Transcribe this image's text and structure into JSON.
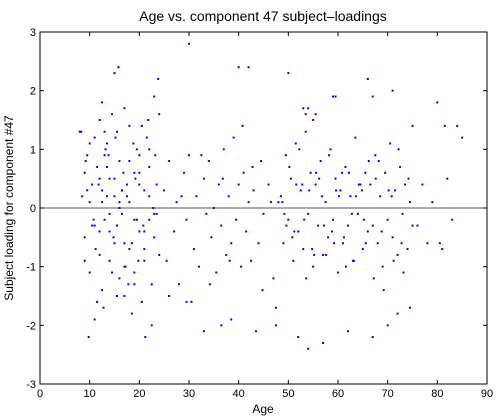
{
  "chart_data": {
    "type": "scatter",
    "title": "Age vs. component 47 subject–loadings",
    "xlabel": "Age",
    "ylabel": "Subject loading for component #47",
    "xlim": [
      0,
      90
    ],
    "ylim": [
      -3,
      3
    ],
    "xticks": [
      "0",
      "10",
      "20",
      "30",
      "40",
      "50",
      "60",
      "70",
      "80",
      "90"
    ],
    "yticks": [
      "-3",
      "-2",
      "-1",
      "0",
      "1",
      "2",
      "3"
    ],
    "grid": false,
    "legend": "none",
    "zero_line": 0,
    "colors": {
      "points": "#0000ff",
      "zero_line": "#555555",
      "axes": "#000000"
    },
    "x": [
      8,
      8.5,
      9,
      9,
      9.5,
      10,
      10,
      10.5,
      11,
      11,
      11.5,
      12,
      12,
      12.5,
      12.5,
      13,
      13,
      13.5,
      14,
      14,
      14.5,
      15,
      15,
      15.5,
      16,
      16,
      16.5,
      17,
      17,
      17.5,
      18,
      18,
      18.5,
      19,
      19,
      19.5,
      20,
      20,
      20.5,
      21,
      21,
      21.5,
      22,
      22,
      22.5,
      23,
      23,
      23.5,
      24,
      24,
      9,
      10,
      11,
      12,
      13,
      14,
      15,
      16,
      17,
      18,
      19,
      20,
      21,
      22,
      23,
      10.5,
      12.5,
      14.5,
      16.5,
      18.5,
      20.5,
      22.5,
      13.5,
      15.5,
      17.5,
      19.5,
      9.5,
      11.5,
      8.3,
      9.2,
      10.8,
      11.8,
      12.8,
      13.8,
      14.8,
      15.8,
      16.8,
      17.8,
      18.8,
      19.8,
      20.8,
      21.8,
      22.8,
      23.8,
      9.8,
      11.2,
      13.2,
      15.2,
      17.2,
      19.2,
      21.2,
      23.2,
      12,
      12.5,
      13.5,
      14,
      15,
      15.5,
      16,
      16.5,
      17,
      18,
      19,
      20,
      21,
      22,
      23.5,
      25,
      25.5,
      26,
      27,
      27.5,
      28,
      29,
      29.5,
      30,
      31,
      31.5,
      32,
      33,
      33.5,
      34,
      34.5,
      35,
      35.5,
      36,
      36.5,
      37,
      37.5,
      38,
      38.5,
      39,
      39.5,
      40,
      40.5,
      41,
      41.5,
      42,
      42.5,
      43,
      44,
      44.5,
      45,
      46,
      47,
      48,
      26,
      28.5,
      30.5,
      32.5,
      34.2,
      36.8,
      38.2,
      40.8,
      42.8,
      44.8,
      46.5,
      47.5,
      48.5,
      49,
      49.5,
      50,
      50.5,
      51,
      51.5,
      52,
      52.5,
      53,
      53.5,
      54,
      54.5,
      55,
      55.5,
      56,
      56.5,
      57,
      57.5,
      58,
      58.5,
      59,
      59.5,
      60,
      60.5,
      61,
      61.5,
      62,
      62.5,
      63,
      63.5,
      64,
      64.5,
      65,
      65.5,
      66,
      49.2,
      50.2,
      51.2,
      52.2,
      53.2,
      54.2,
      55.2,
      56.2,
      57.2,
      58.2,
      59.2,
      60.2,
      61.2,
      62.2,
      63.2,
      64.2,
      65.2,
      66.2,
      48.8,
      50.8,
      52.8,
      54.8,
      56.8,
      58.8,
      60.8,
      62.8,
      64.8,
      49.6,
      51.6,
      53.6,
      55.6,
      57.6,
      59.6,
      61.6,
      63.6,
      65.6,
      67.6,
      66.5,
      67,
      67.5,
      68,
      68.5,
      69,
      69.5,
      70,
      70.5,
      71,
      71.5,
      72,
      72.5,
      73,
      73.5,
      74,
      74.5,
      75,
      67.2,
      68.2,
      69.2,
      70.2,
      71.2,
      72.2,
      73.2,
      74.2,
      68.8,
      70.8,
      72.8,
      76,
      77,
      78,
      79,
      80,
      80.5,
      81,
      81.5,
      82,
      83,
      84,
      85,
      30,
      40,
      42,
      50,
      53,
      53.5,
      54,
      55,
      55.5,
      59,
      59.5,
      66,
      67,
      71,
      75,
      29.5,
      33,
      36.5,
      38.5,
      43.5,
      47.5,
      52,
      54,
      57,
      62,
      67,
      70,
      72,
      74.5
    ],
    "y": [
      1.3,
      0.2,
      -0.5,
      0.6,
      0.9,
      0.1,
      -1.1,
      0.4,
      1.2,
      -0.3,
      0.7,
      -0.8,
      1.5,
      0.3,
      -1.4,
      0.9,
      -0.2,
      1.1,
      0.5,
      -0.9,
      1.6,
      0.2,
      -0.6,
      1.3,
      -1.2,
      0.8,
      -0.1,
      1.7,
      -1.5,
      0.4,
      -0.7,
      1.4,
      -1.8,
      0.6,
      -1.1,
      1.0,
      -0.4,
      0.9,
      -1.6,
      0.3,
      -0.9,
      1.2,
      -0.2,
      0.7,
      -1.3,
      1.9,
      -0.5,
      0.4,
      1.6,
      -0.8,
      -0.9,
      1.1,
      -1.9,
      0.5,
      1.3,
      -0.4,
      2.3,
      0.1,
      -1.0,
      0.8,
      -1.3,
      0.6,
      -0.7,
      1.0,
      -0.1,
      -0.3,
      1.8,
      -1.1,
      0.3,
      -0.6,
      1.4,
      -2.0,
      0.7,
      -1.5,
      0.2,
      -0.2,
      0.3,
      -1.6,
      1.3,
      0.8,
      -0.2,
      0.4,
      -1.7,
      0.9,
      -0.5,
      2.4,
      0.6,
      -1.3,
      1.1,
      -0.9,
      -0.3,
      1.5,
      0.0,
      2.2,
      -2.2,
      -0.7,
      1.0,
      1.2,
      -1.0,
      0.5,
      -2.2,
      0.9,
      -0.4,
      0.1,
      0.2,
      -0.1,
      0.5,
      -0.3,
      0.0,
      0.3,
      -0.6,
      0.1,
      -0.2,
      0.4,
      -0.4,
      0.2,
      -0.1,
      0.3,
      -0.9,
      0.8,
      -0.4,
      0.1,
      -1.3,
      0.6,
      -0.2,
      0.9,
      -0.7,
      0.2,
      -1.0,
      0.5,
      -0.1,
      0.8,
      -0.5,
      0.0,
      -1.1,
      0.4,
      -0.3,
      1.0,
      -0.8,
      0.2,
      -0.6,
      1.2,
      -0.2,
      0.4,
      -1.0,
      0.6,
      -0.4,
      0.1,
      -0.9,
      0.3,
      -0.6,
      0.8,
      -0.1,
      0.4,
      -1.2,
      0.1,
      -1.5,
      0.2,
      -1.6,
      0.9,
      -1.3,
      0.5,
      -0.9,
      1.4,
      0.7,
      -1.4,
      0.1,
      -1.7,
      0.2,
      -0.6,
      0.9,
      -0.2,
      0.5,
      -0.9,
      1.1,
      -0.4,
      0.3,
      -0.7,
      1.3,
      -0.1,
      0.6,
      -1.0,
      0.4,
      -0.3,
      0.8,
      -0.8,
      0.1,
      -0.5,
      1.0,
      -0.2,
      0.5,
      -1.1,
      0.3,
      -0.6,
      0.7,
      -0.3,
      0.2,
      -0.9,
      1.2,
      -0.1,
      0.4,
      -0.7,
      0.6,
      -0.4,
      -0.1,
      0.7,
      -0.4,
      1.0,
      -0.2,
      0.3,
      -0.8,
      0.5,
      -0.3,
      0.9,
      -0.6,
      0.2,
      -0.5,
      0.6,
      -0.9,
      0.4,
      -0.2,
      0.8,
      0.1,
      -0.5,
      0.4,
      -0.7,
      0.2,
      -0.4,
      0.6,
      -0.1,
      0.3,
      -0.3,
      0.4,
      -1.2,
      0.6,
      -0.8,
      0.3,
      -1.0,
      0.2,
      -0.6,
      0.5,
      0.4,
      -0.3,
      0.9,
      -0.6,
      0.2,
      -1.0,
      0.6,
      -0.2,
      1.1,
      -0.5,
      0.3,
      -0.8,
      0.7,
      -0.1,
      0.4,
      -0.7,
      0.1,
      -0.3,
      -1.2,
      0.8,
      -1.4,
      0.3,
      -0.9,
      1.0,
      -1.1,
      0.5,
      -0.4,
      0.2,
      -0.6,
      -0.3,
      0.4,
      -0.6,
      0.1,
      1.8,
      -0.6,
      -0.7,
      1.4,
      0.5,
      -0.2,
      1.4,
      1.2,
      2.8,
      2.4,
      2.4,
      2.3,
      1.7,
      1.6,
      1.7,
      1.5,
      1.6,
      1.9,
      1.9,
      2.2,
      1.9,
      2.0,
      1.4,
      -1.6,
      -2.1,
      -2.0,
      -1.9,
      -2.1,
      -2.0,
      -2.2,
      -2.4,
      -2.3,
      -2.1,
      -2.2,
      -2.0,
      -1.8,
      -1.7
    ]
  }
}
